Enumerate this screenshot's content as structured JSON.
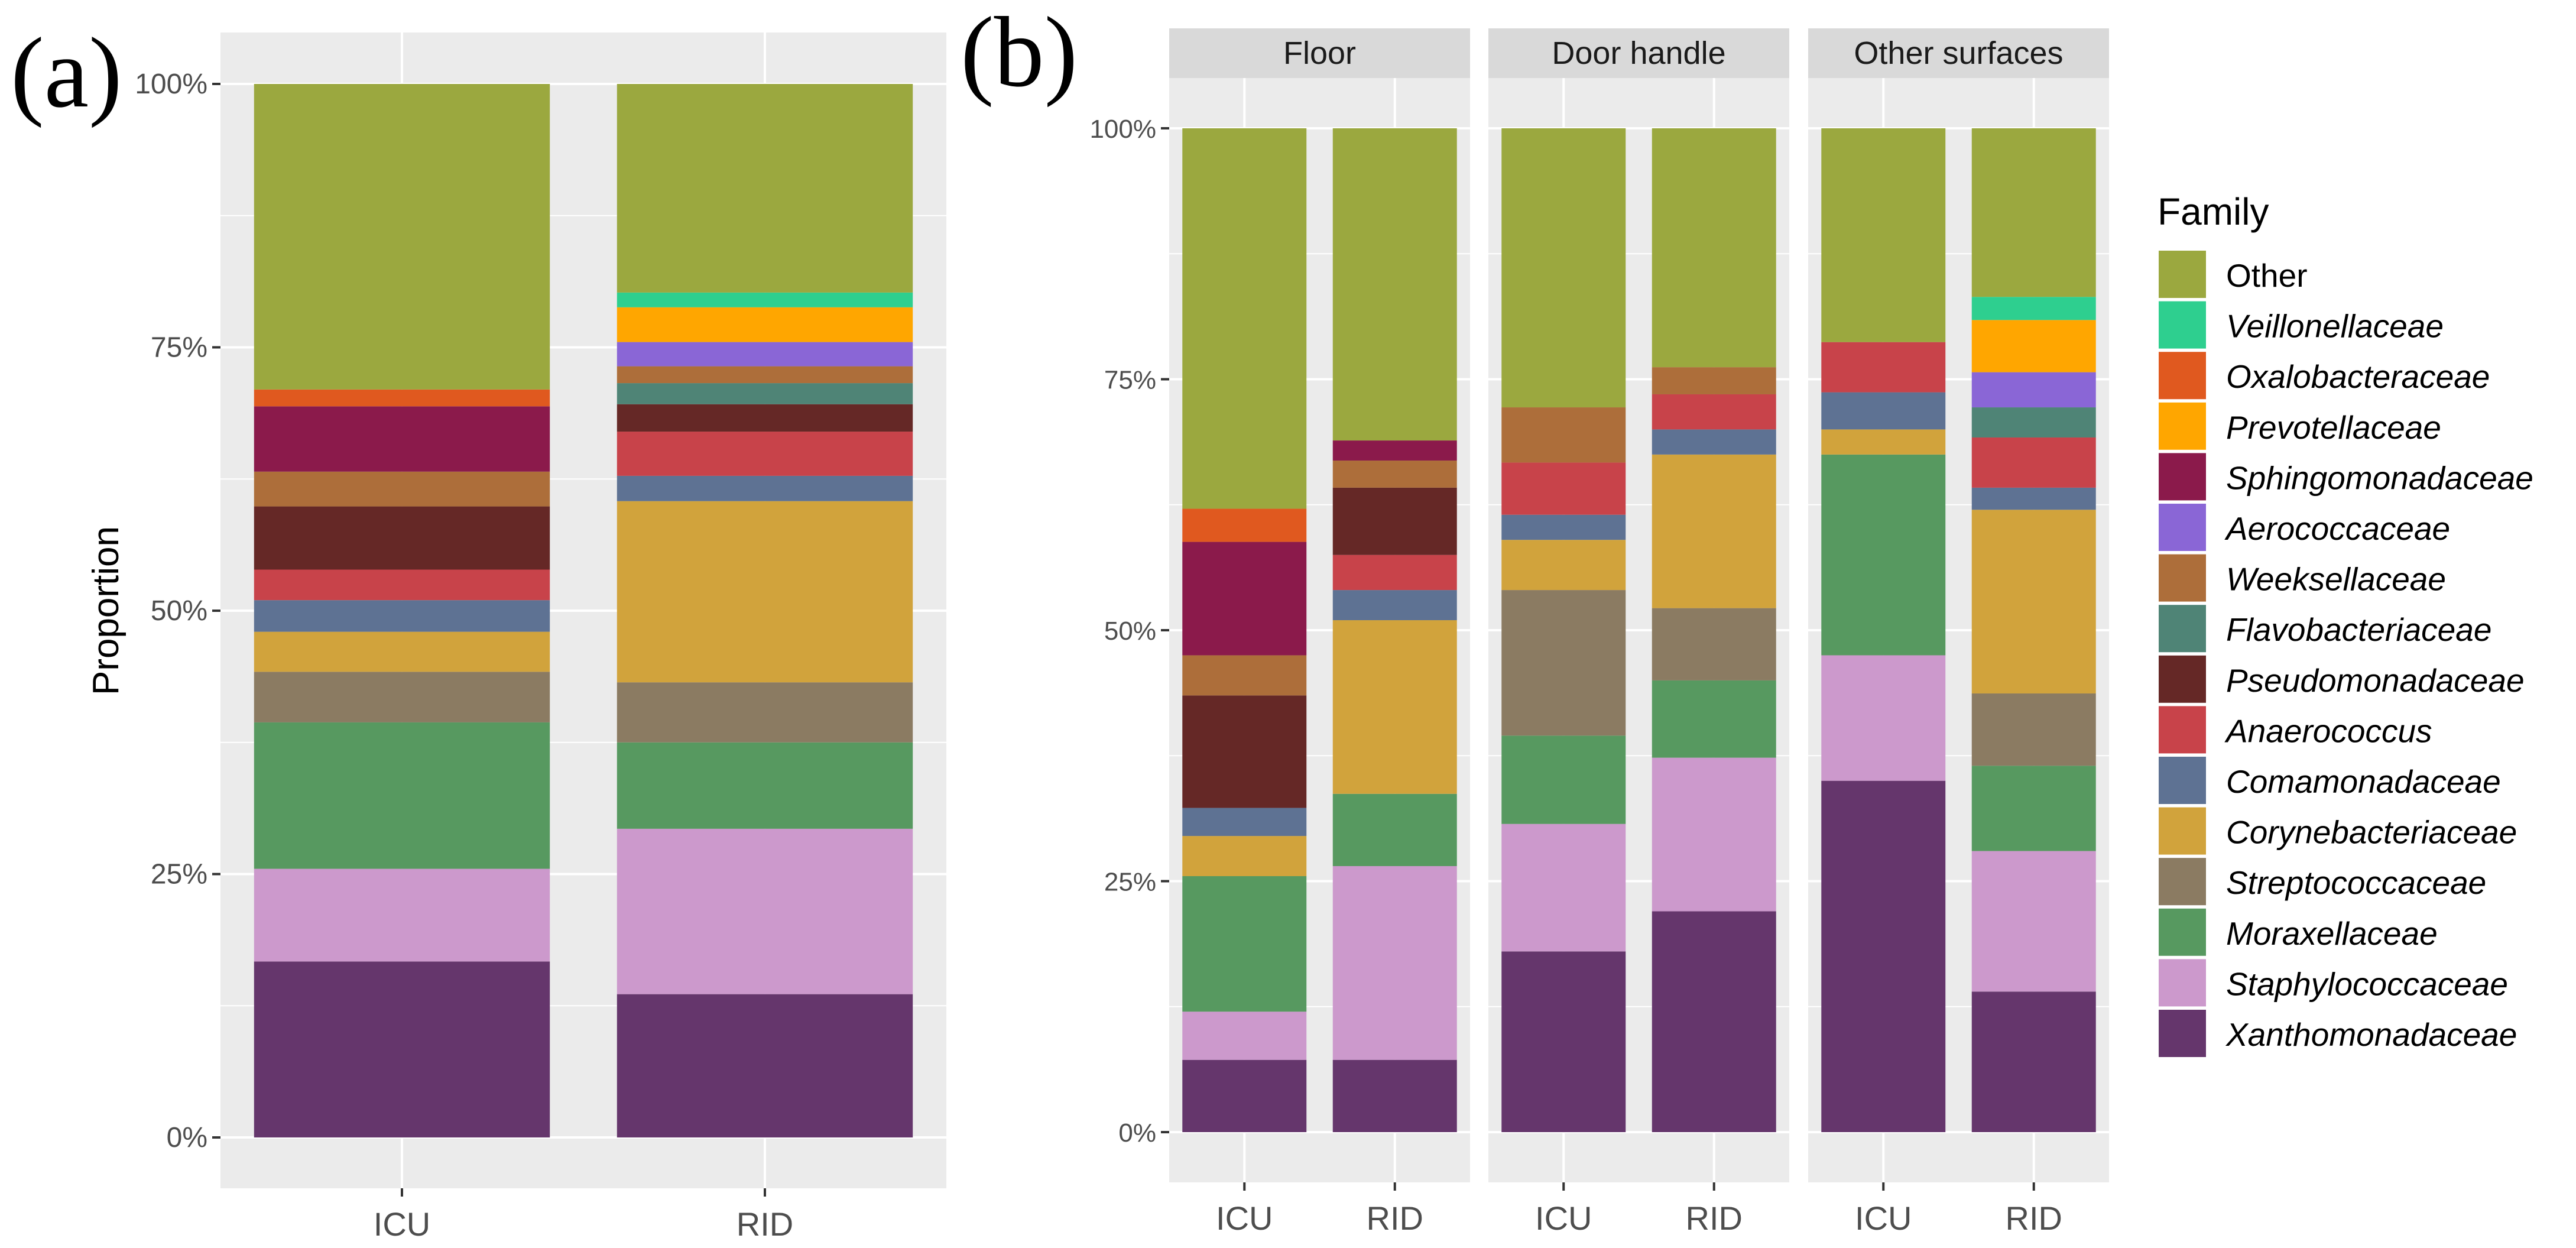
{
  "panel_labels": {
    "a": "(a)",
    "b": "(b)"
  },
  "legend": {
    "title": "Family",
    "items": [
      {
        "name": "Other",
        "color": "#9BA83F",
        "italic": false
      },
      {
        "name": "Veillonellaceae",
        "color": "#2ECF8F",
        "italic": true
      },
      {
        "name": "Oxalobacteraceae",
        "color": "#E0591F",
        "italic": true
      },
      {
        "name": "Prevotellaceae",
        "color": "#FFA600",
        "italic": true
      },
      {
        "name": "Sphingomonadaceae",
        "color": "#8B1A4B",
        "italic": true
      },
      {
        "name": "Aerococcaceae",
        "color": "#8A66D6",
        "italic": true
      },
      {
        "name": "Weeksellaceae",
        "color": "#AD6E3A",
        "italic": true
      },
      {
        "name": "Flavobacteriaceae",
        "color": "#4F8476",
        "italic": true
      },
      {
        "name": "Pseudomonadaceae",
        "color": "#652826",
        "italic": true
      },
      {
        "name": "Anaerococcus",
        "color": "#C8434A",
        "italic": true
      },
      {
        "name": "Comamonadaceae",
        "color": "#5E7293",
        "italic": true
      },
      {
        "name": "Corynebacteriaceae",
        "color": "#D1A33C",
        "italic": true
      },
      {
        "name": "Streptococcaceae",
        "color": "#8B7B62",
        "italic": true
      },
      {
        "name": "Moraxellaceae",
        "color": "#579960",
        "italic": true
      },
      {
        "name": "Staphylococcaceae",
        "color": "#CC99CC",
        "italic": true
      },
      {
        "name": "Xanthomonadaceae",
        "color": "#65366C",
        "italic": true
      }
    ]
  },
  "chart_data": [
    {
      "type": "bar",
      "stacked": true,
      "panel": "(a)",
      "ylabel": "Proportion",
      "yticks": [
        "0%",
        "25%",
        "50%",
        "75%",
        "100%"
      ],
      "ylim": [
        0,
        1
      ],
      "categories": [
        "ICU",
        "RID"
      ],
      "series": [
        {
          "name": "Xanthomonadaceae",
          "values": [
            0.167,
            0.136
          ]
        },
        {
          "name": "Staphylococcaceae",
          "values": [
            0.088,
            0.157
          ]
        },
        {
          "name": "Moraxellaceae",
          "values": [
            0.139,
            0.082
          ]
        },
        {
          "name": "Streptococcaceae",
          "values": [
            0.048,
            0.057
          ]
        },
        {
          "name": "Corynebacteriaceae",
          "values": [
            0.038,
            0.172
          ]
        },
        {
          "name": "Comamonadaceae",
          "values": [
            0.03,
            0.024
          ]
        },
        {
          "name": "Anaerococcus",
          "values": [
            0.029,
            0.042
          ]
        },
        {
          "name": "Pseudomonadaceae",
          "values": [
            0.06,
            0.026
          ]
        },
        {
          "name": "Flavobacteriaceae",
          "values": [
            0.0,
            0.02
          ]
        },
        {
          "name": "Weeksellaceae",
          "values": [
            0.033,
            0.016
          ]
        },
        {
          "name": "Aerococcaceae",
          "values": [
            0.0,
            0.023
          ]
        },
        {
          "name": "Sphingomonadaceae",
          "values": [
            0.062,
            0.0
          ]
        },
        {
          "name": "Prevotellaceae",
          "values": [
            0.0,
            0.033
          ]
        },
        {
          "name": "Oxalobacteraceae",
          "values": [
            0.016,
            0.0
          ]
        },
        {
          "name": "Veillonellaceae",
          "values": [
            0.0,
            0.014
          ]
        },
        {
          "name": "Other",
          "values": [
            0.29,
            0.198
          ]
        }
      ]
    },
    {
      "type": "bar",
      "stacked": true,
      "panel": "(b)",
      "facets": [
        "Floor",
        "Door handle",
        "Other surfaces"
      ],
      "yticks": [
        "0%",
        "25%",
        "50%",
        "75%",
        "100%"
      ],
      "ylim": [
        0,
        1
      ],
      "categories": [
        "ICU",
        "RID"
      ],
      "series": [
        {
          "name": "Xanthomonadaceae",
          "values": [
            [
              0.072,
              0.072
            ],
            [
              0.18,
              0.22
            ],
            [
              0.35,
              0.14
            ]
          ]
        },
        {
          "name": "Staphylococcaceae",
          "values": [
            [
              0.048,
              0.193
            ],
            [
              0.127,
              0.153
            ],
            [
              0.125,
              0.14
            ]
          ]
        },
        {
          "name": "Moraxellaceae",
          "values": [
            [
              0.135,
              0.072
            ],
            [
              0.088,
              0.077
            ],
            [
              0.2,
              0.085
            ]
          ]
        },
        {
          "name": "Streptococcaceae",
          "values": [
            [
              0.0,
              0.0
            ],
            [
              0.145,
              0.072
            ],
            [
              0.0,
              0.072
            ]
          ]
        },
        {
          "name": "Corynebacteriaceae",
          "values": [
            [
              0.04,
              0.173
            ],
            [
              0.05,
              0.153
            ],
            [
              0.025,
              0.183
            ]
          ]
        },
        {
          "name": "Comamonadaceae",
          "values": [
            [
              0.028,
              0.03
            ],
            [
              0.025,
              0.025
            ],
            [
              0.037,
              0.022
            ]
          ]
        },
        {
          "name": "Anaerococcus",
          "values": [
            [
              0.0,
              0.035
            ],
            [
              0.052,
              0.035
            ],
            [
              0.05,
              0.05
            ]
          ]
        },
        {
          "name": "Pseudomonadaceae",
          "values": [
            [
              0.112,
              0.067
            ],
            [
              0.0,
              0.0
            ],
            [
              0.0,
              0.0
            ]
          ]
        },
        {
          "name": "Flavobacteriaceae",
          "values": [
            [
              0.0,
              0.0
            ],
            [
              0.0,
              0.0
            ],
            [
              0.0,
              0.03
            ]
          ]
        },
        {
          "name": "Weeksellaceae",
          "values": [
            [
              0.04,
              0.027
            ],
            [
              0.055,
              0.027
            ],
            [
              0.0,
              0.0
            ]
          ]
        },
        {
          "name": "Aerococcaceae",
          "values": [
            [
              0.0,
              0.0
            ],
            [
              0.0,
              0.0
            ],
            [
              0.0,
              0.035
            ]
          ]
        },
        {
          "name": "Sphingomonadaceae",
          "values": [
            [
              0.113,
              0.02
            ],
            [
              0.0,
              0.0
            ],
            [
              0.0,
              0.0
            ]
          ]
        },
        {
          "name": "Prevotellaceae",
          "values": [
            [
              0.0,
              0.0
            ],
            [
              0.0,
              0.0
            ],
            [
              0.0,
              0.052
            ]
          ]
        },
        {
          "name": "Oxalobacteraceae",
          "values": [
            [
              0.033,
              0.0
            ],
            [
              0.0,
              0.0
            ],
            [
              0.0,
              0.0
            ]
          ]
        },
        {
          "name": "Veillonellaceae",
          "values": [
            [
              0.0,
              0.0
            ],
            [
              0.0,
              0.0
            ],
            [
              0.0,
              0.023
            ]
          ]
        },
        {
          "name": "Other",
          "values": [
            [
              0.379,
              0.311
            ],
            [
              0.278,
              0.238
            ],
            [
              0.213,
              0.168
            ]
          ]
        }
      ]
    }
  ]
}
